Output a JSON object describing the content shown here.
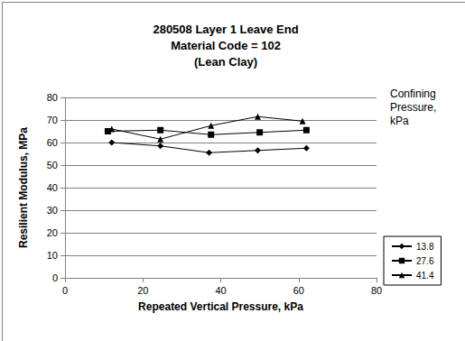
{
  "chart_data": {
    "type": "line",
    "title": "280508 Layer 1 Leave End\nMaterial Code = 102\n(Lean Clay)",
    "x_label": "Repeated Vertical Pressure, kPa",
    "y_label": "Resilient Modulus, MPa",
    "legend_title": "Confining\nPressure,\nkPa",
    "series": [
      {
        "name": "13.8",
        "color": "#000000",
        "marker": "diamond",
        "x": [
          12,
          24.5,
          37,
          49.5,
          62
        ],
        "values": [
          60,
          58.5,
          55.5,
          56.5,
          57.5
        ]
      },
      {
        "name": "27.6",
        "color": "#000000",
        "marker": "square",
        "x": [
          11,
          24.5,
          37.5,
          50,
          62
        ],
        "values": [
          65,
          65.5,
          63.5,
          64.5,
          65.5
        ]
      },
      {
        "name": "41.4",
        "color": "#000000",
        "marker": "triangle",
        "x": [
          12,
          24.5,
          37.5,
          49.5,
          61
        ],
        "values": [
          66,
          61.5,
          67.5,
          71.5,
          69.5
        ]
      }
    ],
    "xlim": [
      0,
      80
    ],
    "xticks": [
      0,
      20,
      40,
      60,
      80
    ],
    "ylim": [
      0,
      80
    ],
    "yticks": [
      0,
      10,
      20,
      30,
      40,
      50,
      60,
      70,
      80
    ],
    "grid": true,
    "legend": "right"
  }
}
